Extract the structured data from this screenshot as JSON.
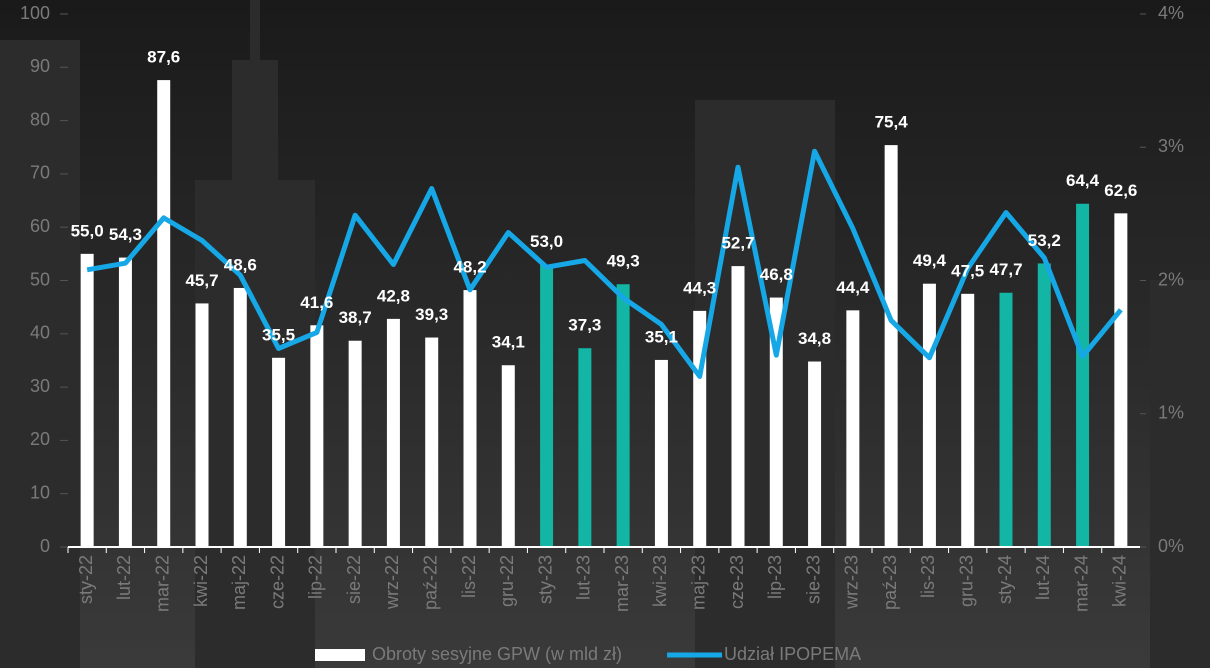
{
  "chart_data": {
    "type": "bar",
    "categories": [
      "sty-22",
      "lut-22",
      "mar-22",
      "kwi-22",
      "maj-22",
      "cze-22",
      "lip-22",
      "sie-22",
      "wrz-22",
      "paź-22",
      "lis-22",
      "gru-22",
      "sty-23",
      "lut-23",
      "mar-23",
      "kwi-23",
      "maj-23",
      "cze-23",
      "lip-23",
      "sie-23",
      "wrz-23",
      "paź-23",
      "lis-23",
      "gru-23",
      "sty-24",
      "lut-24",
      "mar-24",
      "kwi-24"
    ],
    "series": [
      {
        "name": "Obroty sesyjne GPW (w mld zł)",
        "color": "#ffffff",
        "colors": [
          "#ffffff",
          "#ffffff",
          "#ffffff",
          "#ffffff",
          "#ffffff",
          "#ffffff",
          "#ffffff",
          "#ffffff",
          "#ffffff",
          "#ffffff",
          "#ffffff",
          "#ffffff",
          "#13b5a4",
          "#13b5a4",
          "#13b5a4",
          "#ffffff",
          "#ffffff",
          "#ffffff",
          "#ffffff",
          "#ffffff",
          "#ffffff",
          "#ffffff",
          "#ffffff",
          "#ffffff",
          "#13b5a4",
          "#13b5a4",
          "#13b5a4",
          "#ffffff"
        ],
        "values": [
          55.0,
          54.3,
          87.6,
          45.7,
          48.6,
          35.5,
          41.6,
          38.7,
          42.8,
          39.3,
          48.2,
          34.1,
          53.0,
          37.3,
          49.3,
          35.1,
          44.3,
          52.7,
          46.8,
          34.8,
          44.4,
          75.4,
          49.4,
          47.5,
          47.7,
          53.2,
          64.4,
          62.6
        ],
        "value_labels": [
          "55,0",
          "54,3",
          "87,6",
          "45,7",
          "48,6",
          "35,5",
          "41,6",
          "38,7",
          "42,8",
          "39,3",
          "48,2",
          "34,1",
          "53,0",
          "37,3",
          "49,3",
          "35,1",
          "44,3",
          "52,7",
          "46,8",
          "34,8",
          "44,4",
          "75,4",
          "49,4",
          "47,5",
          "47,7",
          "53,2",
          "64,4",
          "62,6"
        ]
      },
      {
        "name": "Udział IPOPEMA",
        "type": "line",
        "color": "#16a8e6",
        "axis": "y2",
        "values": [
          2.08,
          2.13,
          2.47,
          2.3,
          2.04,
          1.49,
          1.61,
          2.49,
          2.12,
          2.69,
          1.93,
          2.36,
          2.1,
          2.15,
          1.87,
          1.67,
          1.28,
          2.85,
          1.44,
          2.97,
          2.39,
          1.7,
          1.42,
          2.09,
          2.51,
          2.17,
          1.43,
          1.78
        ]
      }
    ],
    "ylim": [
      0,
      100
    ],
    "yticks": [
      0,
      10,
      20,
      30,
      40,
      50,
      60,
      70,
      80,
      90,
      100
    ],
    "y2lim": [
      0,
      4
    ],
    "y2ticks": [
      {
        "value": 0,
        "label": "0%"
      },
      {
        "value": 1,
        "label": "1%"
      },
      {
        "value": 2,
        "label": "2%"
      },
      {
        "value": 3,
        "label": "3%"
      },
      {
        "value": 4,
        "label": "4%"
      }
    ],
    "grid": false
  }
}
